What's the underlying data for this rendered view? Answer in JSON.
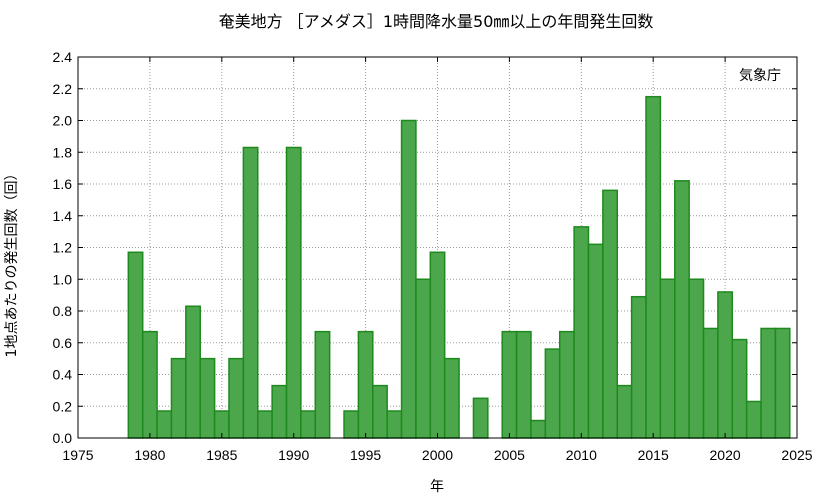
{
  "chart_data": {
    "type": "bar",
    "title": "奄美地方 ［アメダス］1時間降水量50㎜以上の年間発生回数",
    "xlabel": "年",
    "ylabel": "1地点あたりの発生回数（回）",
    "annotation": "気象庁",
    "xlim": [
      1975,
      2025
    ],
    "ylim": [
      0,
      2.4
    ],
    "x_ticks": [
      "1975",
      "1980",
      "1985",
      "1990",
      "1995",
      "2000",
      "2005",
      "2010",
      "2015",
      "2020",
      "2025"
    ],
    "y_ticks": [
      "0.0",
      "0.2",
      "0.4",
      "0.6",
      "0.8",
      "1.0",
      "1.2",
      "1.4",
      "1.6",
      "1.8",
      "2.0",
      "2.2",
      "2.4"
    ],
    "grid": true,
    "bar_color": "#4ca64c",
    "bar_edge_color": "#1e8a1e",
    "x": [
      1976,
      1977,
      1978,
      1979,
      1980,
      1981,
      1982,
      1983,
      1984,
      1985,
      1986,
      1987,
      1988,
      1989,
      1990,
      1991,
      1992,
      1993,
      1994,
      1995,
      1996,
      1997,
      1998,
      1999,
      2000,
      2001,
      2002,
      2003,
      2004,
      2005,
      2006,
      2007,
      2008,
      2009,
      2010,
      2011,
      2012,
      2013,
      2014,
      2015,
      2016,
      2017,
      2018,
      2019,
      2020,
      2021,
      2022,
      2023,
      2024
    ],
    "values": [
      0,
      0,
      0,
      1.17,
      0.67,
      0.17,
      0.5,
      0.83,
      0.5,
      0.17,
      0.5,
      1.83,
      0.17,
      0.33,
      1.83,
      0.17,
      0.67,
      0,
      0.17,
      0.67,
      0.33,
      0.17,
      2.0,
      1.0,
      1.17,
      0.5,
      0,
      0.25,
      0,
      0.67,
      0.67,
      0.11,
      0.56,
      0.67,
      1.33,
      1.22,
      1.56,
      0.33,
      0.89,
      2.15,
      1.0,
      1.62,
      1.0,
      0.69,
      0.92,
      0.62,
      0.23,
      0.69,
      0.69
    ]
  }
}
